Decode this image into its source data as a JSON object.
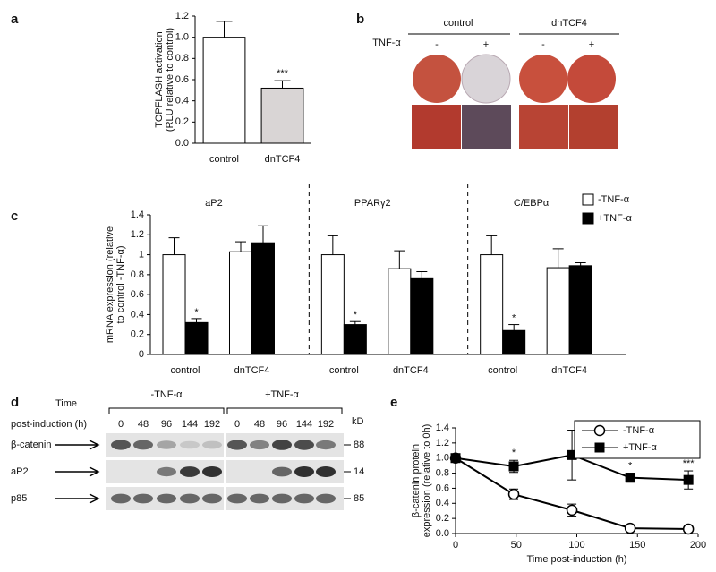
{
  "figure": {
    "panel_labels": [
      "a",
      "b",
      "c",
      "d",
      "e"
    ]
  },
  "chart_data": [
    {
      "type": "bar",
      "ylabel": [
        "TOPFLASH activation",
        "(RLU relative to control)"
      ],
      "categories": [
        "control",
        "dnTCF4"
      ],
      "values": [
        1.0,
        0.52
      ],
      "errors": [
        0.15,
        0.07
      ],
      "colors": [
        "#ffffff",
        "#d9d5d5"
      ],
      "significance": [
        null,
        "***"
      ],
      "ylim": [
        0,
        1.2
      ],
      "yticks": [
        {
          "value": 0,
          "label": "0.0"
        },
        0.2,
        0.4,
        0.6,
        0.8,
        {
          "value": 1,
          "label": "1.0"
        },
        1.2
      ]
    },
    {
      "type": "grouped_bar",
      "ylabel": [
        "mRNA expression (relative",
        "to control -TNF-α)"
      ],
      "subplot_titles": [
        "aP2",
        "PPARγ2",
        "C/EBPα"
      ],
      "categories": [
        "control",
        "dnTCF4",
        "control",
        "dnTCF4",
        "control",
        "dnTCF4"
      ],
      "series": [
        {
          "name": "-TNF-α",
          "color": "#ffffff",
          "values": [
            1.0,
            1.03,
            1.0,
            0.86,
            1.0,
            0.87
          ],
          "errors": [
            0.17,
            0.1,
            0.19,
            0.18,
            0.19,
            0.19
          ],
          "significance": [
            null,
            null,
            null,
            null,
            null,
            null
          ]
        },
        {
          "name": "+TNF-α",
          "color": "#000000",
          "values": [
            0.32,
            1.12,
            0.3,
            0.76,
            0.24,
            0.89
          ],
          "errors": [
            0.04,
            0.17,
            0.03,
            0.07,
            0.06,
            0.03
          ],
          "significance": [
            "*",
            null,
            "*",
            null,
            "*",
            null
          ]
        }
      ],
      "ylim": [
        0,
        1.4
      ],
      "yticks": [
        0,
        0.2,
        0.4,
        0.6,
        0.8,
        1,
        1.2,
        1.4
      ]
    },
    {
      "type": "line",
      "xlabel": "Time post-induction (h)",
      "ylabel": [
        "β-catenin protein",
        "expression (relative to 0h)"
      ],
      "x": [
        0,
        48,
        96,
        144,
        192
      ],
      "series": [
        {
          "name": "-TNF-α",
          "color": "#000000",
          "marker": "circle",
          "marker_fill": "#ffffff",
          "values": [
            1.0,
            0.52,
            0.31,
            0.07,
            0.06
          ],
          "errors": [
            0,
            0.07,
            0.08,
            0.02,
            0.02
          ],
          "significance": [
            null,
            null,
            null,
            null,
            null
          ]
        },
        {
          "name": "+TNF-α",
          "color": "#000000",
          "marker": "square",
          "marker_fill": "#000000",
          "values": [
            1.0,
            0.89,
            1.04,
            0.74,
            0.71
          ],
          "errors": [
            0,
            0.08,
            0.33,
            0.06,
            0.12
          ],
          "significance": [
            null,
            "*",
            null,
            "*",
            "***"
          ]
        }
      ],
      "xlim": [
        0,
        200
      ],
      "xticks": [
        0,
        50,
        100,
        150,
        200
      ],
      "ylim": [
        0,
        1.4
      ],
      "yticks": [
        {
          "value": 0,
          "label": "0.0"
        },
        0.2,
        0.4,
        0.6,
        0.8,
        {
          "value": 1,
          "label": "1.0"
        },
        1.2,
        1.4
      ]
    }
  ],
  "panel_b": {
    "groups": [
      "control",
      "dnTCF4"
    ],
    "treatment_label": "TNF-α",
    "treatments": [
      "-",
      "+",
      "-",
      "+"
    ]
  },
  "panel_d": {
    "time_label": "Time",
    "time_label_2": "post-induction (h)",
    "conditions": [
      "-TNF-α",
      "+TNF-α"
    ],
    "lanes": [
      "0",
      "48",
      "96",
      "144",
      "192"
    ],
    "kd_label": "kD",
    "proteins": [
      "β-catenin",
      "aP2",
      "p85"
    ],
    "sizes": [
      "88",
      "14",
      "85"
    ]
  }
}
